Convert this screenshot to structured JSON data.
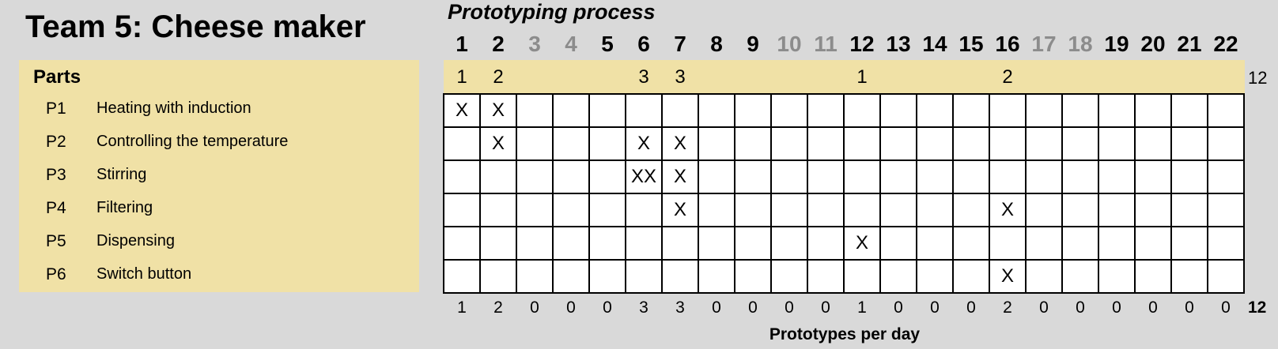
{
  "team_title": "Team 5: Cheese maker",
  "parts": {
    "heading": "Parts",
    "items": [
      {
        "id": "P1",
        "name": "Heating with induction"
      },
      {
        "id": "P2",
        "name": "Controlling the temperature"
      },
      {
        "id": "P3",
        "name": "Stirring"
      },
      {
        "id": "P4",
        "name": "Filtering"
      },
      {
        "id": "P5",
        "name": "Dispensing"
      },
      {
        "id": "P6",
        "name": "Switch button"
      }
    ]
  },
  "process": {
    "title": "Prototyping process",
    "days": [
      {
        "label": "1",
        "muted": false
      },
      {
        "label": "2",
        "muted": false
      },
      {
        "label": "3",
        "muted": true
      },
      {
        "label": "4",
        "muted": true
      },
      {
        "label": "5",
        "muted": false
      },
      {
        "label": "6",
        "muted": false
      },
      {
        "label": "7",
        "muted": false
      },
      {
        "label": "8",
        "muted": false
      },
      {
        "label": "9",
        "muted": false
      },
      {
        "label": "10",
        "muted": true
      },
      {
        "label": "11",
        "muted": true
      },
      {
        "label": "12",
        "muted": false
      },
      {
        "label": "13",
        "muted": false
      },
      {
        "label": "14",
        "muted": false
      },
      {
        "label": "15",
        "muted": false
      },
      {
        "label": "16",
        "muted": false
      },
      {
        "label": "17",
        "muted": true
      },
      {
        "label": "18",
        "muted": true
      },
      {
        "label": "19",
        "muted": false
      },
      {
        "label": "20",
        "muted": false
      },
      {
        "label": "21",
        "muted": false
      },
      {
        "label": "22",
        "muted": false
      }
    ],
    "band_counts": [
      "1",
      "2",
      "",
      "",
      "",
      "3",
      "3",
      "",
      "",
      "",
      "",
      "1",
      "",
      "",
      "",
      "2",
      "",
      "",
      "",
      "",
      "",
      ""
    ],
    "band_total": "12",
    "matrix": [
      [
        "X",
        "X",
        "",
        "",
        "",
        "",
        "",
        "",
        "",
        "",
        "",
        "",
        "",
        "",
        "",
        "",
        "",
        "",
        "",
        "",
        "",
        ""
      ],
      [
        "",
        "X",
        "",
        "",
        "",
        "X",
        "X",
        "",
        "",
        "",
        "",
        "",
        "",
        "",
        "",
        "",
        "",
        "",
        "",
        "",
        "",
        ""
      ],
      [
        "",
        "",
        "",
        "",
        "",
        "XX",
        "X",
        "",
        "",
        "",
        "",
        "",
        "",
        "",
        "",
        "",
        "",
        "",
        "",
        "",
        "",
        ""
      ],
      [
        "",
        "",
        "",
        "",
        "",
        "",
        "X",
        "",
        "",
        "",
        "",
        "",
        "",
        "",
        "",
        "X",
        "",
        "",
        "",
        "",
        "",
        ""
      ],
      [
        "",
        "",
        "",
        "",
        "",
        "",
        "",
        "",
        "",
        "",
        "",
        "X",
        "",
        "",
        "",
        "",
        "",
        "",
        "",
        "",
        "",
        ""
      ],
      [
        "",
        "",
        "",
        "",
        "",
        "",
        "",
        "",
        "",
        "",
        "",
        "",
        "",
        "",
        "",
        "X",
        "",
        "",
        "",
        "",
        "",
        ""
      ]
    ],
    "daily_counts": [
      "1",
      "2",
      "0",
      "0",
      "0",
      "3",
      "3",
      "0",
      "0",
      "0",
      "0",
      "1",
      "0",
      "0",
      "0",
      "2",
      "0",
      "0",
      "0",
      "0",
      "0",
      "0"
    ],
    "daily_total": "12",
    "caption": "Prototypes per day"
  },
  "colors": {
    "background": "#d9d9d9",
    "panel": "#f0e1a6",
    "muted_day": "#8c8c8c",
    "normal_day": "#000000"
  }
}
